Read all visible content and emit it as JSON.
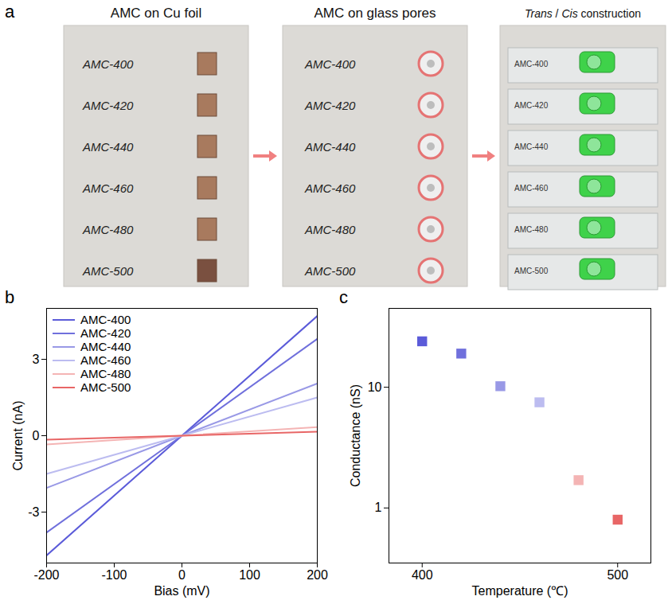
{
  "photo_panel": {
    "panel": "a",
    "steps": [
      {
        "title": "AMC on Cu foil",
        "labels": [
          "AMC-400",
          "AMC-420",
          "AMC-440",
          "AMC-460",
          "AMC-480",
          "AMC-500"
        ]
      },
      {
        "title": "AMC on glass pores",
        "labels": [
          "AMC-400",
          "AMC-420",
          "AMC-440",
          "AMC-460",
          "AMC-480",
          "AMC-500"
        ]
      },
      {
        "title": "Trans / Cis construction",
        "labels": [
          "AMC-400",
          "AMC-420",
          "AMC-440",
          "AMC-460",
          "AMC-480",
          "AMC-500"
        ]
      }
    ]
  },
  "chart_data": [
    {
      "panel": "b",
      "type": "line",
      "x_label": "Bias (mV)",
      "y_label": "Current (nA)",
      "x": [
        -200,
        0,
        200
      ],
      "series": [
        {
          "name": "AMC-400",
          "color": "#5b5bd9",
          "values": [
            -4.7,
            0,
            4.7
          ]
        },
        {
          "name": "AMC-420",
          "color": "#7070dc",
          "values": [
            -3.8,
            0,
            3.8
          ]
        },
        {
          "name": "AMC-440",
          "color": "#9999e6",
          "values": [
            -2.05,
            0,
            2.05
          ]
        },
        {
          "name": "AMC-460",
          "color": "#bcbcf0",
          "values": [
            -1.5,
            0,
            1.5
          ]
        },
        {
          "name": "AMC-480",
          "color": "#f4b4b4",
          "values": [
            -0.34,
            0,
            0.34
          ]
        },
        {
          "name": "AMC-500",
          "color": "#e86666",
          "values": [
            -0.16,
            0,
            0.16
          ]
        }
      ],
      "xlim": [
        -200,
        200
      ],
      "xticks": [
        -200,
        -100,
        0,
        100,
        200
      ],
      "ylim": [
        -5,
        5
      ],
      "yticks": [
        -3,
        0,
        3
      ],
      "legend": "upper left"
    },
    {
      "panel": "c",
      "type": "scatter",
      "x_label": "Temperature (℃)",
      "y_label": "Conductance (nS)",
      "x": [
        400,
        420,
        440,
        460,
        480,
        500
      ],
      "values": [
        24,
        19,
        10.2,
        7.5,
        1.7,
        0.8
      ],
      "colors": [
        "#5b5bd9",
        "#7070dc",
        "#9999e6",
        "#bcbcf0",
        "#f4b4b4",
        "#e86666"
      ],
      "marker": "square",
      "log": "y",
      "xlim": [
        383,
        517
      ],
      "xticks": [
        400,
        500
      ],
      "ylim": [
        0.35,
        45
      ],
      "yticks": [
        1,
        10
      ]
    }
  ]
}
